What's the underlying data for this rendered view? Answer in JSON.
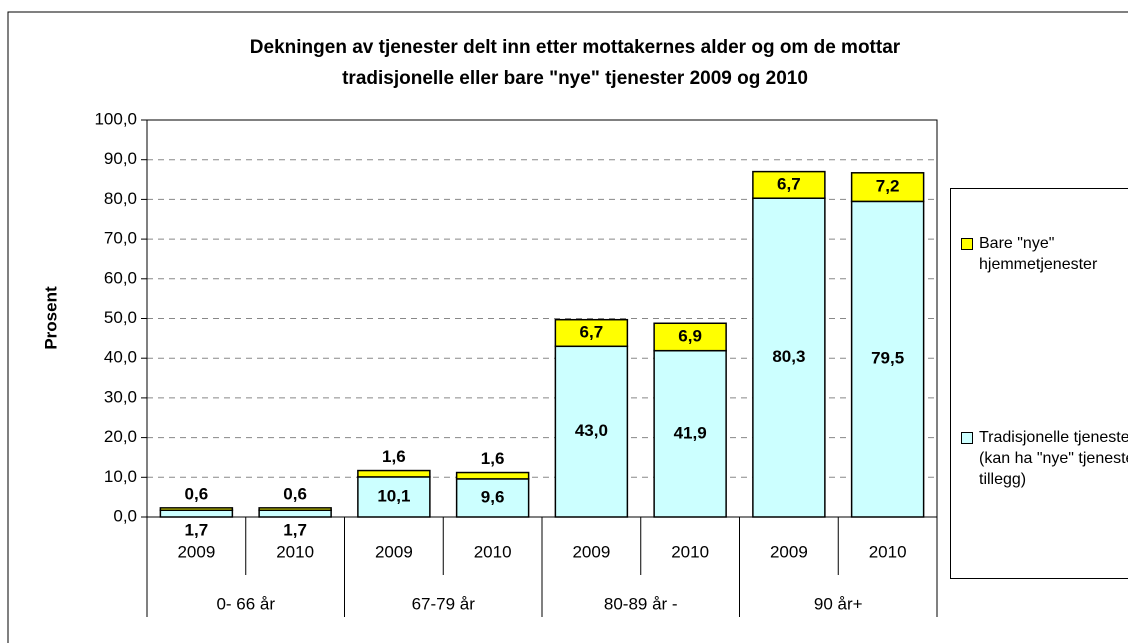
{
  "chart_data": {
    "type": "bar",
    "stacked": true,
    "title": "Dekningen av tjenester delt inn etter mottakernes alder og om de mottar\ntradisjonelle eller bare \"nye\" tjenester 2009 og 2010",
    "y_label": "Prosent",
    "categories": [
      "2009",
      "2010",
      "2009",
      "2010",
      "2009",
      "2010",
      "2009",
      "2010"
    ],
    "category_groups": [
      "0- 66 år",
      "67-79 år",
      "80-89 år -",
      "90 år+"
    ],
    "series": [
      {
        "name": "Tradisjonelle tjenester (kan ha \"nye\" tjenester i tillegg)",
        "color": "#ccffff",
        "values": [
          1.7,
          1.7,
          10.1,
          9.6,
          43.0,
          41.9,
          80.3,
          79.5
        ],
        "value_labels": [
          "1,7",
          "1,7",
          "10,1",
          "9,6",
          "43,0",
          "41,9",
          "80,3",
          "79,5"
        ]
      },
      {
        "name": "Bare \"nye\" hjemmetjenester",
        "color": "#ffff00",
        "values": [
          0.6,
          0.6,
          1.6,
          1.6,
          6.7,
          6.9,
          6.7,
          7.2
        ],
        "value_labels": [
          "0,6",
          "0,6",
          "1,6",
          "1,6",
          "6,7",
          "6,9",
          "6,7",
          "7,2"
        ]
      }
    ],
    "ylim": [
      0,
      100
    ],
    "yticks": [
      {
        "value": 0,
        "label": "0,0"
      },
      {
        "value": 10,
        "label": "10,0"
      },
      {
        "value": 20,
        "label": "20,0"
      },
      {
        "value": 30,
        "label": "30,0"
      },
      {
        "value": 40,
        "label": "40,0"
      },
      {
        "value": 50,
        "label": "50,0"
      },
      {
        "value": 60,
        "label": "60,0"
      },
      {
        "value": 70,
        "label": "70,0"
      },
      {
        "value": 80,
        "label": "80,0"
      },
      {
        "value": 90,
        "label": "90,0"
      },
      {
        "value": 100,
        "label": "100,0"
      }
    ],
    "grid": true
  }
}
